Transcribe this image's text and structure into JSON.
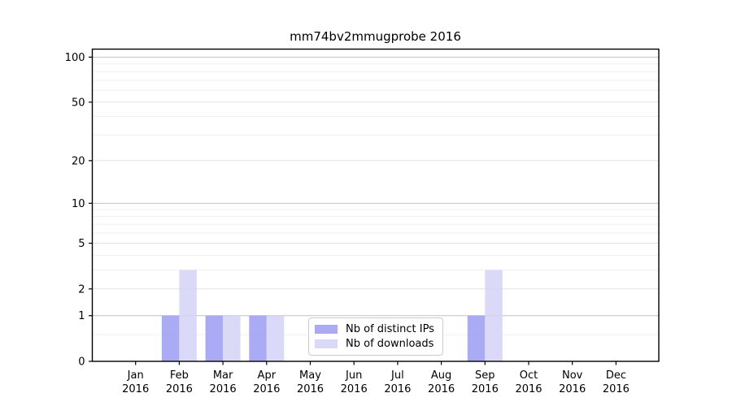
{
  "figure": {
    "background": "#ffffff"
  },
  "chart_data": {
    "type": "bar",
    "title": "mm74bv2mmugprobe 2016",
    "xlabel": "",
    "ylabel": "",
    "categories": [
      "Jan 2016",
      "Feb 2016",
      "Mar 2016",
      "Apr 2016",
      "May 2016",
      "Jun 2016",
      "Jul 2016",
      "Aug 2016",
      "Sep 2016",
      "Oct 2016",
      "Nov 2016",
      "Dec 2016"
    ],
    "series": [
      {
        "name": "Nb of distinct IPs",
        "color": "#aaaaf5",
        "values": [
          0,
          1,
          1,
          1,
          0,
          0,
          0,
          0,
          1,
          0,
          0,
          0
        ]
      },
      {
        "name": "Nb of downloads",
        "color": "#dadaf8",
        "values": [
          0,
          3,
          1,
          1,
          0,
          0,
          0,
          0,
          3,
          0,
          0,
          0
        ]
      }
    ],
    "y_scale": "log1p",
    "ylim": [
      0,
      113
    ],
    "y_ticks": [
      0,
      1,
      2,
      5,
      10,
      20,
      50,
      100
    ],
    "grid": true,
    "gridlines": {
      "strong": [
        1,
        10,
        100
      ],
      "medium": [
        2,
        5,
        20,
        50
      ],
      "faint": [
        0.5,
        3,
        4,
        6,
        7,
        8,
        9,
        30,
        40,
        60,
        70,
        80,
        90
      ]
    },
    "legend_position": "lower center"
  },
  "colors": {
    "spine": "#000000",
    "tick_text": "#000000",
    "grid_strong": "#c2c2c2",
    "grid_medium": "#e4e4e4",
    "grid_faint": "#f0f0f0",
    "legend_border": "#cccccc"
  }
}
